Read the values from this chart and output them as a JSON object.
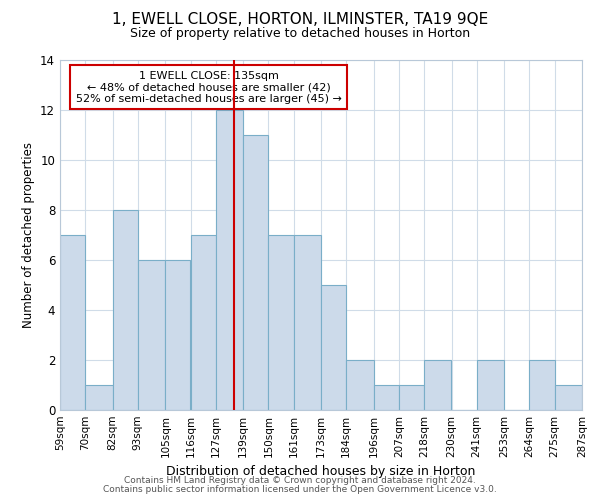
{
  "title": "1, EWELL CLOSE, HORTON, ILMINSTER, TA19 9QE",
  "subtitle": "Size of property relative to detached houses in Horton",
  "xlabel": "Distribution of detached houses by size in Horton",
  "ylabel": "Number of detached properties",
  "bin_edges": [
    59,
    70,
    82,
    93,
    105,
    116,
    127,
    139,
    150,
    161,
    173,
    184,
    196,
    207,
    218,
    230,
    241,
    253,
    264,
    275,
    287
  ],
  "counts": [
    7,
    1,
    8,
    6,
    6,
    7,
    12,
    11,
    7,
    7,
    5,
    2,
    1,
    1,
    2,
    0,
    2,
    0,
    2,
    1
  ],
  "tick_labels": [
    "59sqm",
    "70sqm",
    "82sqm",
    "93sqm",
    "105sqm",
    "116sqm",
    "127sqm",
    "139sqm",
    "150sqm",
    "161sqm",
    "173sqm",
    "184sqm",
    "196sqm",
    "207sqm",
    "218sqm",
    "230sqm",
    "241sqm",
    "253sqm",
    "264sqm",
    "275sqm",
    "287sqm"
  ],
  "bar_color": "#ccdaea",
  "bar_edge_color": "#7aaec8",
  "property_line_x": 135,
  "property_line_color": "#cc0000",
  "annotation_title": "1 EWELL CLOSE: 135sqm",
  "annotation_line1": "← 48% of detached houses are smaller (42)",
  "annotation_line2": "52% of semi-detached houses are larger (45) →",
  "annotation_box_edge": "#cc0000",
  "ylim": [
    0,
    14
  ],
  "yticks": [
    0,
    2,
    4,
    6,
    8,
    10,
    12,
    14
  ],
  "footer1": "Contains HM Land Registry data © Crown copyright and database right 2024.",
  "footer2": "Contains public sector information licensed under the Open Government Licence v3.0."
}
